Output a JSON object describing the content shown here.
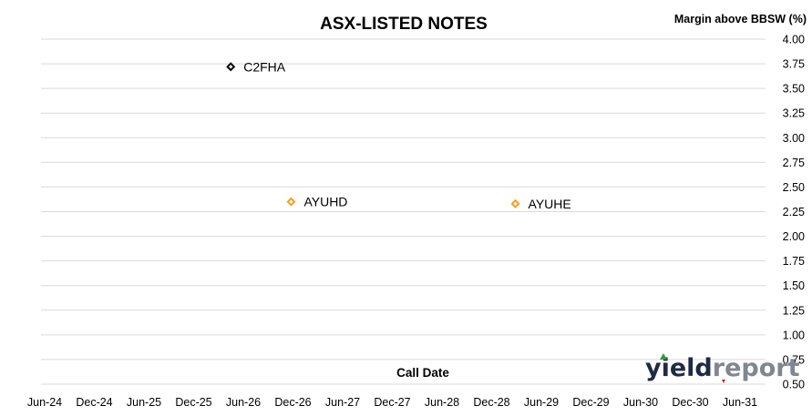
{
  "chart_data": {
    "type": "scatter",
    "title": "ASX-LISTED NOTES",
    "xlabel": "Call Date",
    "ylabel": "Margin above BBSW (%)",
    "y_axis_side": "right",
    "ylim": [
      0.5,
      4.0
    ],
    "y_ticks": [
      "4.00",
      "3.75",
      "3.50",
      "3.25",
      "3.00",
      "2.75",
      "2.50",
      "2.25",
      "2.00",
      "1.75",
      "1.50",
      "1.25",
      "1.00",
      "0.75",
      "0.50"
    ],
    "x_tick_labels": [
      "Jun-24",
      "Dec-24",
      "Jun-25",
      "Dec-25",
      "Jun-26",
      "Dec-26",
      "Jun-27",
      "Dec-27",
      "Jun-28",
      "Dec-28",
      "Jun-29",
      "Dec-29",
      "Jun-30",
      "Dec-30",
      "Jun-31"
    ],
    "xlim": [
      "2024-06",
      "2031-06"
    ],
    "grid": true,
    "points": [
      {
        "label": "C2FHA",
        "x": "2026-04",
        "y": 3.72,
        "color": "#000000"
      },
      {
        "label": "AYUHD",
        "x": "2026-11",
        "y": 2.35,
        "color": "#f5a01a"
      },
      {
        "label": "AYUHE",
        "x": "2029-01",
        "y": 2.33,
        "color": "#f5a01a"
      }
    ]
  },
  "branding": {
    "logo_part1": "yield",
    "logo_part2": "report",
    "logo_color1": "#1f2a44",
    "logo_color2": "#7f8790",
    "logo_accent_green": "#2e9c3a",
    "logo_accent_red": "#d62020"
  }
}
